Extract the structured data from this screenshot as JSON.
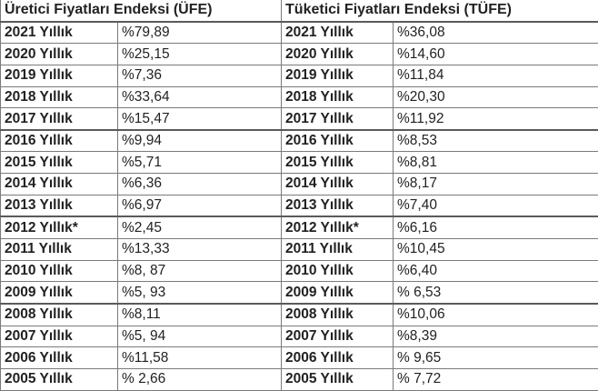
{
  "table": {
    "headers": {
      "ufe": "Üretici Fiyatları Endeksi (ÜFE)",
      "tufe": "Tüketici Fiyatları Endeksi (TÜFE)"
    },
    "rows": [
      {
        "ufe_year": "2021 Yıllık",
        "ufe_value": "%79,89",
        "tufe_year": "2021 Yıllık",
        "tufe_value": "%36,08"
      },
      {
        "ufe_year": "2020 Yıllık",
        "ufe_value": "%25,15",
        "tufe_year": "2020 Yıllık",
        "tufe_value": "%14,60"
      },
      {
        "ufe_year": "2019 Yıllık",
        "ufe_value": "%7,36",
        "tufe_year": "2019 Yıllık",
        "tufe_value": "%11,84"
      },
      {
        "ufe_year": "2018 Yıllık",
        "ufe_value": "%33,64",
        "tufe_year": "2018 Yıllık",
        "tufe_value": "%20,30"
      },
      {
        "ufe_year": "2017 Yıllık",
        "ufe_value": "%15,47",
        "tufe_year": "2017 Yıllık",
        "tufe_value": "%11,92"
      },
      {
        "ufe_year": "2016 Yıllık",
        "ufe_value": "%9,94",
        "tufe_year": "2016 Yıllık",
        "tufe_value": "%8,53"
      },
      {
        "ufe_year": "2015 Yıllık",
        "ufe_value": "%5,71",
        "tufe_year": "2015 Yıllık",
        "tufe_value": "%8,81"
      },
      {
        "ufe_year": "2014 Yıllık",
        "ufe_value": "%6,36",
        "tufe_year": "2014 Yıllık",
        "tufe_value": "%8,17"
      },
      {
        "ufe_year": "2013 Yıllık",
        "ufe_value": "%6,97",
        "tufe_year": "2013 Yıllık",
        "tufe_value": "%7,40"
      },
      {
        "ufe_year": "2012 Yıllık*",
        "ufe_value": "%2,45",
        "tufe_year": "2012 Yıllık*",
        "tufe_value": "%6,16"
      },
      {
        "ufe_year": "2011 Yıllık",
        "ufe_value": "%13,33",
        "tufe_year": "2011 Yıllık",
        "tufe_value": "%10,45"
      },
      {
        "ufe_year": "2010 Yıllık",
        "ufe_value": "%8, 87",
        "tufe_year": "2010 Yıllık",
        "tufe_value": "%6,40"
      },
      {
        "ufe_year": "2009 Yıllık",
        "ufe_value": "%5, 93",
        "tufe_year": "2009 Yıllık",
        "tufe_value": "% 6,53"
      },
      {
        "ufe_year": "2008 Yıllık",
        "ufe_value": "%8,11",
        "tufe_year": "2008 Yıllık",
        "tufe_value": "%10,06"
      },
      {
        "ufe_year": "2007 Yıllık",
        "ufe_value": "%5, 94",
        "tufe_year": "2007 Yıllık",
        "tufe_value": "%8,39"
      },
      {
        "ufe_year": "2006 Yıllık",
        "ufe_value": "%11,58",
        "tufe_year": "2006 Yıllık",
        "tufe_value": "% 9,65"
      },
      {
        "ufe_year": "2005 Yıllık",
        "ufe_value": "% 2,66",
        "tufe_year": "2005 Yıllık",
        "tufe_value": "% 7,72"
      }
    ]
  }
}
